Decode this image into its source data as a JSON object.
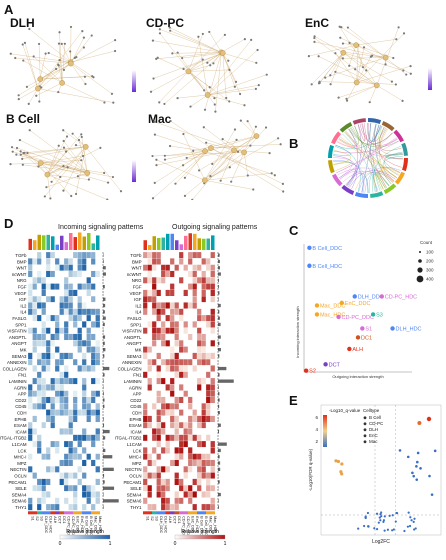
{
  "panels": {
    "a": {
      "letter": "A",
      "titles": [
        "DLH",
        "CD-PC",
        "EnC"
      ],
      "colorbar": "#7b3fc4"
    },
    "b_cell": {
      "letter": "B Cell"
    },
    "mac": {
      "title": "Mac"
    },
    "b": {
      "letter": "B"
    },
    "c": {
      "letter": "C",
      "y_title": "Incoming interaction strength",
      "x_title": "Outgoing interaction strength",
      "legend_title": "Count",
      "legend_values": [
        "100",
        "200",
        "300",
        "400"
      ],
      "points": [
        {
          "label": "B Cell_DDC",
          "color": "#4f86f7"
        },
        {
          "label": "B Cell_HDC",
          "color": "#4f86f7"
        },
        {
          "label": "Mac_DDC",
          "color": "#f5a623"
        },
        {
          "label": "Mac_HDC",
          "color": "#f5a623"
        },
        {
          "label": "EnC_DDC",
          "color": "#f5a623"
        },
        {
          "label": "DLH_DDC",
          "color": "#4f86f7"
        },
        {
          "label": "CD-PC_HDC",
          "color": "#d86ad6"
        },
        {
          "label": "CD-PC_DDC",
          "color": "#d86ad6"
        },
        {
          "label": "S3",
          "color": "#2bb5a0"
        },
        {
          "label": "S1",
          "color": "#d86ad6"
        },
        {
          "label": "DLH_HDC",
          "color": "#4f86f7"
        },
        {
          "label": "DC1",
          "color": "#d0531c"
        },
        {
          "label": "ALH",
          "color": "#e0311b"
        },
        {
          "label": "DCT",
          "color": "#7b3fc4"
        },
        {
          "label": "S2",
          "color": "#e0311b"
        }
      ]
    },
    "d": {
      "letter": "D",
      "incoming_title": "Incoming signaling patterns",
      "outgoing_title": "Outgoing signaling patterns",
      "xlabel": "Relative strength",
      "scale_min": "0",
      "scale_max": "1",
      "pathways": [
        "TGFb",
        "BMP",
        "WNT",
        "ncWNT",
        "NRG",
        "FGF",
        "VEGF",
        "IGF",
        "IL2",
        "IL4",
        "FASLG",
        "SPP1",
        "VISFATIN",
        "ANGPTL",
        "ANGPT",
        "MK",
        "SEMA3",
        "ANNEXIN",
        "COLLAGEN",
        "FN1",
        "LAMININ",
        "AGRN",
        "APP",
        "CD22",
        "CD45",
        "CDH",
        "EPHB",
        "ESAM",
        "ICAM",
        "ITGAL-ITGB2",
        "L1CAM",
        "LCK",
        "MHC-I",
        "MPZ",
        "NECTIN",
        "OCLN",
        "PECAM1",
        "SELE",
        "SEMA4",
        "SEMA6",
        "THY1"
      ],
      "cell_groups": [
        "S1",
        "S2",
        "S3",
        "DLH_DDC",
        "DLH_HDC",
        "ALH",
        "DCT",
        "DC1",
        "CD-PC_DDC",
        "CD-PC_HDC",
        "EnC_DDC",
        "EnC_HDC",
        "B Cell_DDC",
        "B Cell_HDC",
        "Mac_DDC",
        "Mac_HDC"
      ]
    },
    "e": {
      "letter": "E",
      "colorbar_title": "-Log10_q-value",
      "colorbar_ticks": [
        "6",
        "4",
        "2"
      ],
      "legend_title": "Celltype",
      "legend_items": [
        "B Cell",
        "CD-PC",
        "DLH",
        "EnC",
        "Mac"
      ],
      "ylabel": "-Log10(FDR q-value)",
      "xlabel": "Log2FC"
    }
  },
  "colors": {
    "incoming": "#1f5fa8",
    "outgoing": "#b11414",
    "network_edge": "#c9a060"
  }
}
